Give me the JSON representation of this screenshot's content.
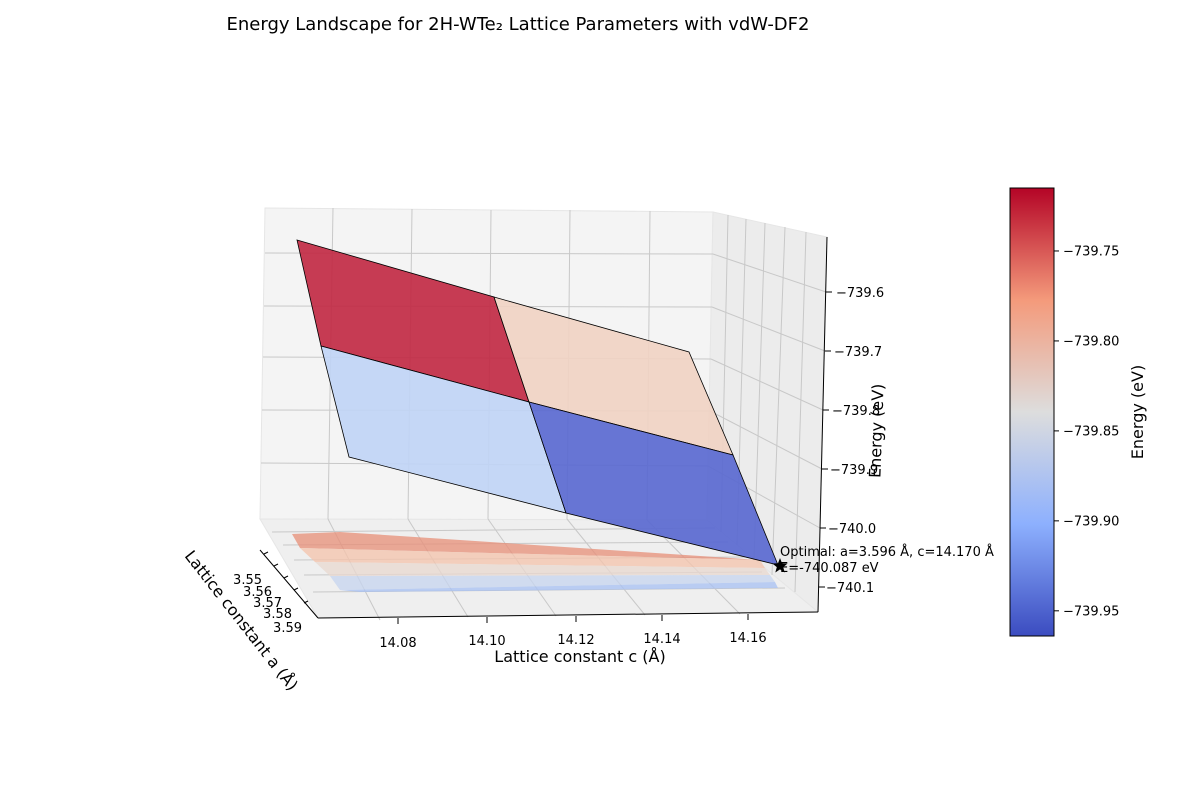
{
  "chart_data": {
    "type": "surface3d",
    "title": "Energy Landscape for 2H-WTe₂ Lattice Parameters with vdW-DF2",
    "xlabel": "Lattice constant a (Å)",
    "ylabel": "Lattice constant c (Å)",
    "zlabel": "Energy (eV)",
    "x_ticks": [
      "3.55",
      "3.56",
      "3.57",
      "3.58",
      "3.59"
    ],
    "y_ticks": [
      "14.08",
      "14.10",
      "14.12",
      "14.14",
      "14.16"
    ],
    "z_ticks": [
      "−739.6",
      "−739.7",
      "−739.8",
      "−739.9",
      "−740.0",
      "−740.1"
    ],
    "colorbar": {
      "label": "Energy (eV)",
      "range": [
        -739.964,
        -739.715
      ],
      "ticks": [
        "−739.75",
        "−739.80",
        "−739.85",
        "−739.90",
        "−739.95"
      ],
      "tick_values": [
        -739.75,
        -739.8,
        -739.85,
        -739.9,
        -739.95
      ],
      "colormap": "coolwarm",
      "colors": [
        "#3b4cc0",
        "#8db0fe",
        "#dddddd",
        "#f49a7b",
        "#b40426"
      ]
    },
    "surface_cells": [
      {
        "a": "low",
        "c": "low",
        "energy": -739.72,
        "color": "#c12a44"
      },
      {
        "a": "low",
        "c": "high",
        "energy": -739.82,
        "color": "#f0d2c3"
      },
      {
        "a": "high",
        "c": "low",
        "energy": -739.87,
        "color": "#c0d4f5"
      },
      {
        "a": "high",
        "c": "high",
        "energy": -739.96,
        "color": "#5a69d0"
      }
    ],
    "optimum": {
      "a": 3.596,
      "c": 14.17,
      "energy": -740.087,
      "label_line1": "Optimal: a=3.596 Å, c=14.170 Å",
      "label_line2": "E=-740.087 eV"
    }
  }
}
